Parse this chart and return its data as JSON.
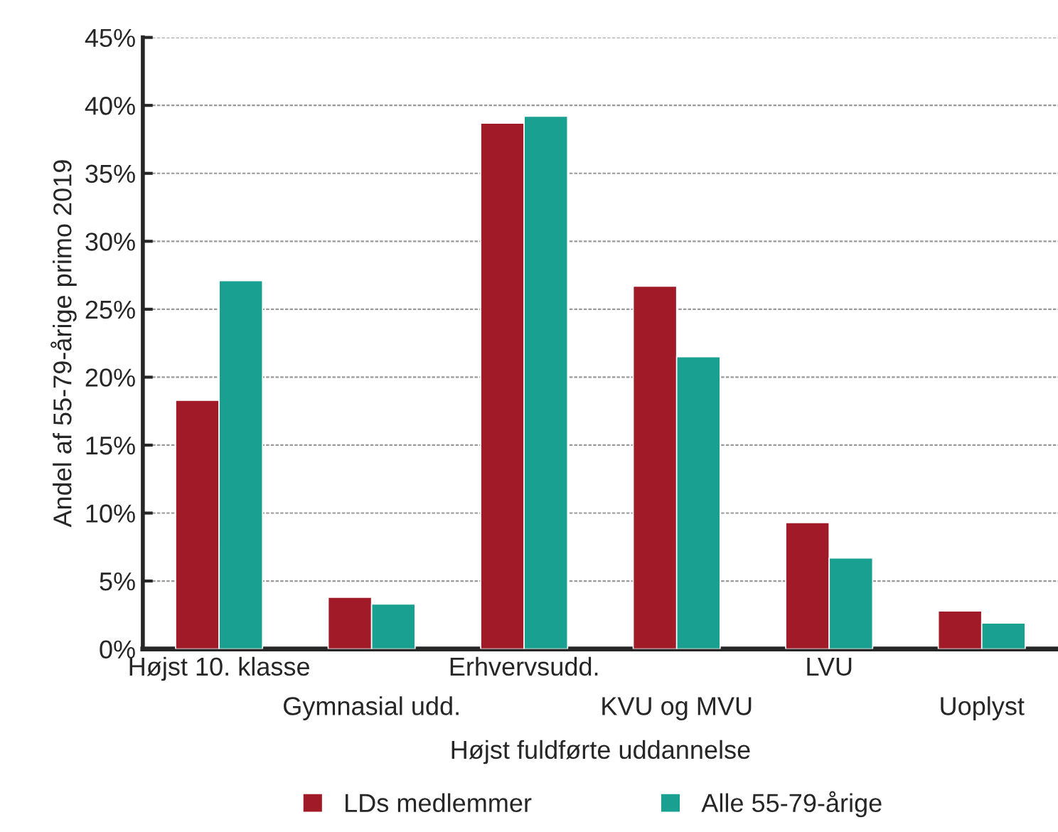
{
  "chart_data": {
    "type": "bar",
    "xlabel": "Højst fuldførte uddannelse",
    "ylabel": "Andel af 55-79-årige primo 2019",
    "categories": [
      "Højst 10. klasse",
      "Gymnasial udd.",
      "Erhvervsudd.",
      "KVU og MVU",
      "LVU",
      "Uoplyst"
    ],
    "series": [
      {
        "name": "LDs medlemmer",
        "color": "#a01a28",
        "values": [
          18.3,
          3.8,
          38.7,
          26.7,
          9.3,
          2.8
        ]
      },
      {
        "name": "Alle 55-79-årige",
        "color": "#1aa090",
        "values": [
          27.1,
          3.3,
          39.2,
          21.5,
          6.7,
          1.9
        ]
      }
    ],
    "ylim": [
      0,
      45
    ],
    "yticks": [
      {
        "value": 0,
        "label": "0%"
      },
      {
        "value": 5,
        "label": "5%"
      },
      {
        "value": 10,
        "label": "10%"
      },
      {
        "value": 15,
        "label": "15%"
      },
      {
        "value": 20,
        "label": "20%"
      },
      {
        "value": 25,
        "label": "25%"
      },
      {
        "value": 30,
        "label": "30%"
      },
      {
        "value": 35,
        "label": "35%"
      },
      {
        "value": 40,
        "label": "40%"
      },
      {
        "value": 45,
        "label": "45%"
      }
    ],
    "grid": "y",
    "legend": "bottom"
  }
}
